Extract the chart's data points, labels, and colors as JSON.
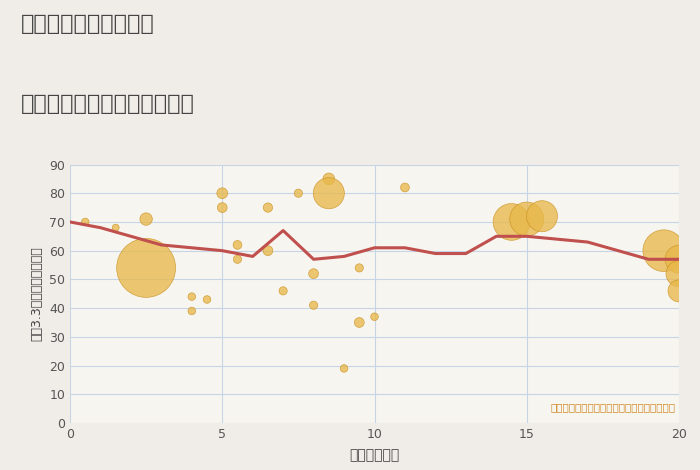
{
  "title_line1": "三重県松阪市田村町の",
  "title_line2": "駅距離別中古マンション価格",
  "xlabel": "駅距離（分）",
  "ylabel": "坪（3.3㎡）単価（万円）",
  "background_color": "#f0ede8",
  "plot_bg_color": "#f7f5f0",
  "annotation": "円の大きさは、取引のあった物件面積を示す",
  "ylim": [
    0,
    90
  ],
  "xlim": [
    0,
    20
  ],
  "yticks": [
    0,
    10,
    20,
    30,
    40,
    50,
    60,
    70,
    80,
    90
  ],
  "xticks": [
    0,
    5,
    10,
    15,
    20
  ],
  "line_x": [
    0,
    1,
    2,
    3,
    4,
    5,
    6,
    7,
    8,
    9,
    10,
    11,
    12,
    13,
    14,
    15,
    16,
    17,
    18,
    19,
    20
  ],
  "line_y": [
    70,
    68,
    65,
    62,
    61,
    60,
    58,
    67,
    57,
    58,
    61,
    61,
    59,
    59,
    65,
    65,
    64,
    63,
    60,
    57,
    57
  ],
  "line_color": "#c0504d",
  "line_width": 2.2,
  "scatter_x": [
    0.5,
    1.5,
    2.5,
    2.5,
    4.0,
    4.0,
    4.5,
    5.0,
    5.0,
    5.5,
    5.5,
    6.5,
    6.5,
    7.0,
    7.5,
    8.0,
    8.0,
    8.5,
    8.5,
    9.0,
    9.5,
    9.5,
    10.0,
    11.0,
    14.5,
    15.0,
    15.5,
    19.5,
    20.0,
    20.0,
    20.0
  ],
  "scatter_y": [
    70,
    68,
    54,
    71,
    44,
    39,
    43,
    80,
    75,
    62,
    57,
    60,
    75,
    46,
    80,
    52,
    41,
    85,
    80,
    19,
    35,
    54,
    37,
    82,
    70,
    71,
    72,
    60,
    57,
    52,
    46
  ],
  "scatter_sizes": [
    30,
    25,
    1800,
    80,
    30,
    30,
    30,
    60,
    50,
    40,
    35,
    50,
    45,
    35,
    35,
    50,
    35,
    70,
    500,
    30,
    50,
    35,
    30,
    40,
    700,
    600,
    500,
    900,
    400,
    350,
    250
  ],
  "scatter_color": "#e8b84b",
  "scatter_alpha": 0.78,
  "scatter_edge_color": "#c89020",
  "scatter_edge_width": 0.5
}
